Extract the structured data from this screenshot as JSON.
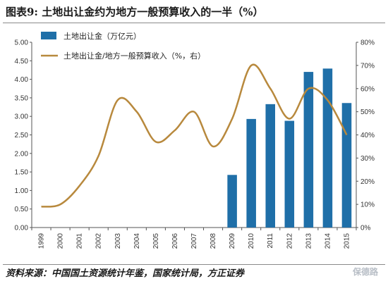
{
  "figure": {
    "title": "图表9:  土地出让金约为地方一般预算收入的一半（%）",
    "source": "资料来源：中国国土资源统计年鉴，国家统计局，方正证券",
    "watermark": "保德路"
  },
  "chart_data": {
    "type": "bar+line",
    "categories": [
      "1999",
      "2000",
      "2001",
      "2002",
      "2003",
      "2004",
      "2005",
      "2006",
      "2007",
      "2008",
      "2009",
      "2010",
      "2011",
      "2012",
      "2013",
      "2014",
      "2015"
    ],
    "series": [
      {
        "name": "土地出让金（万亿元）",
        "type": "bar",
        "axis": "left",
        "color": "#1f6fa8",
        "values": [
          null,
          null,
          null,
          null,
          null,
          null,
          null,
          null,
          null,
          null,
          1.42,
          2.93,
          3.33,
          2.88,
          4.2,
          4.29,
          3.36
        ]
      },
      {
        "name": "土地出让金/地方一般预算收入（%，右）",
        "type": "line",
        "axis": "right",
        "color": "#b8893d",
        "values": [
          9,
          10,
          18,
          31,
          55,
          50,
          37,
          42,
          50,
          35,
          47,
          70,
          60,
          47,
          60,
          55,
          40
        ]
      }
    ],
    "left_axis": {
      "min": 0,
      "max": 5,
      "step": 0.5,
      "ticks": [
        "0.00",
        "0.50",
        "1.00",
        "1.50",
        "2.00",
        "2.50",
        "3.00",
        "3.50",
        "4.00",
        "4.50",
        "5.00"
      ]
    },
    "right_axis": {
      "min": 0,
      "max": 80,
      "step": 10,
      "ticks": [
        "0%",
        "10%",
        "20%",
        "30%",
        "40%",
        "50%",
        "60%",
        "70%",
        "80%"
      ]
    },
    "legend_position": "top-left",
    "grid": false
  }
}
